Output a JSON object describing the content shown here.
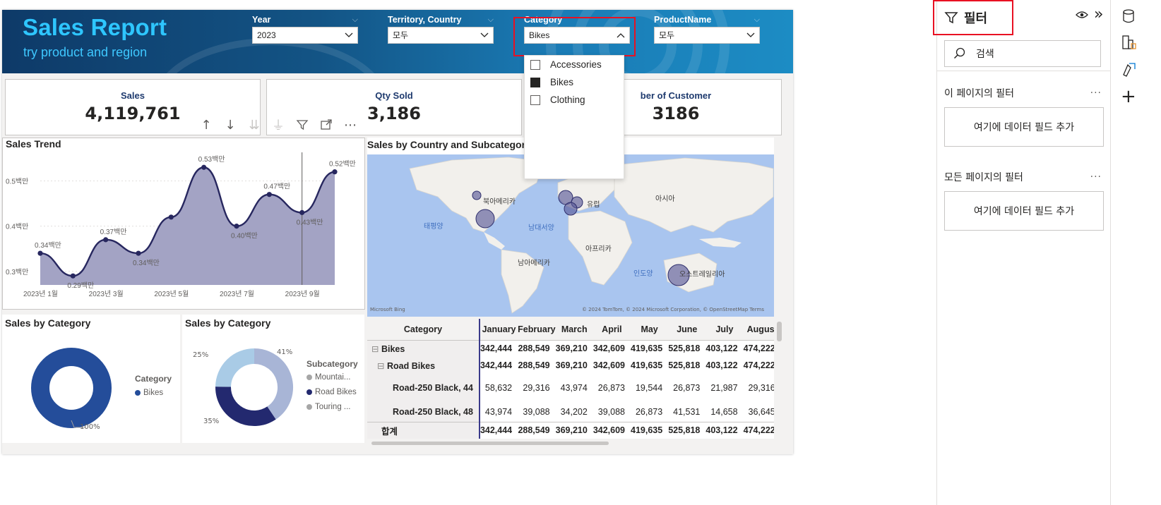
{
  "header": {
    "title": "Sales Report",
    "subtitle": "try product and region"
  },
  "slicers": [
    {
      "label": "Year",
      "value": "2023"
    },
    {
      "label": "Territory, Country",
      "value": "모두"
    },
    {
      "label": "Category",
      "value": "Bikes"
    },
    {
      "label": "ProductName",
      "value": "모두"
    }
  ],
  "category_dropdown": {
    "options": [
      {
        "label": "Accessories",
        "checked": false
      },
      {
        "label": "Bikes",
        "checked": true
      },
      {
        "label": "Clothing",
        "checked": false
      }
    ]
  },
  "cards": [
    {
      "title": "Sales",
      "value": "4,119,761"
    },
    {
      "title": "Qty Sold",
      "value": "3,186"
    },
    {
      "title": "ber of Customer",
      "value": "3186"
    }
  ],
  "sales_trend": {
    "title": "Sales Trend",
    "chart_data": {
      "type": "area",
      "yticks": [
        "0.3백만",
        "0.4백만",
        "0.5백만"
      ],
      "xticks": [
        "2023년 1월",
        "2023년 3월",
        "2023년 5월",
        "2023년 7월",
        "2023년 9월"
      ],
      "months": [
        "Jan",
        "Feb",
        "Mar",
        "Apr",
        "May",
        "Jun",
        "Jul",
        "Aug",
        "Sep",
        "Oct"
      ],
      "values": [
        0.34,
        0.29,
        0.37,
        0.34,
        0.42,
        0.53,
        0.4,
        0.47,
        0.43,
        0.52
      ],
      "labels": [
        "0.34백만",
        "0.29백만",
        "0.37백만",
        "0.34백만",
        "",
        "0.53백만",
        "0.40백만",
        "0.47백만",
        "0.43백만",
        "0.52백만"
      ],
      "ylim": [
        0.27,
        0.56
      ],
      "fill_color": "#a3a3c4",
      "line_color": "#27275f"
    }
  },
  "map": {
    "title": "Sales by Country and Subcategory",
    "labels": {
      "north_america": "북아메리카",
      "pacific": "태평양",
      "atlantic": "남대서양",
      "europe": "유럽",
      "asia": "아시아",
      "africa": "아프리카",
      "south_america": "남아메리카",
      "indian": "인도양",
      "australia": "오스트레일리아"
    },
    "attribution": "© 2024 TomTom, © 2024 Microsoft Corporation, © OpenStreetMap  Terms",
    "bing": "Microsoft Bing"
  },
  "donut1": {
    "title": "Sales by Category",
    "legend_title": "Category",
    "legend": [
      {
        "name": "Bikes",
        "color": "#244d9a"
      }
    ],
    "chart_data": {
      "type": "pie",
      "slices": [
        {
          "name": "Bikes",
          "value": 100
        }
      ],
      "labels": [
        "100%"
      ]
    }
  },
  "donut2": {
    "title": "Sales by Category",
    "legend_title": "Subcategory",
    "legend": [
      {
        "name": "Mountai...",
        "color": "#a6a6a6"
      },
      {
        "name": "Road Bikes",
        "color": "#23296f"
      },
      {
        "name": "Touring ...",
        "color": "#a6a6a6"
      }
    ],
    "chart_data": {
      "type": "pie",
      "slices": [
        {
          "name": "Mountain Bikes",
          "value": 41,
          "color": "#a8b5d6"
        },
        {
          "name": "Road Bikes",
          "value": 35,
          "color": "#23296f"
        },
        {
          "name": "Touring Bikes",
          "value": 25,
          "color": "#a9cbe6"
        }
      ],
      "labels": [
        "41%",
        "35%",
        "25%"
      ]
    }
  },
  "matrix": {
    "columns": [
      "Category",
      "January",
      "February",
      "March",
      "April",
      "May",
      "June",
      "July",
      "August"
    ],
    "rows": [
      {
        "label": "Bikes",
        "values": [
          "342,444",
          "288,549",
          "369,210",
          "342,609",
          "419,635",
          "525,818",
          "403,122",
          "474,222"
        ]
      },
      {
        "label": "Road Bikes",
        "values": [
          "342,444",
          "288,549",
          "369,210",
          "342,609",
          "419,635",
          "525,818",
          "403,122",
          "474,222"
        ]
      },
      {
        "label": "Road-250 Black, 44",
        "values": [
          "58,632",
          "29,316",
          "43,974",
          "26,873",
          "19,544",
          "26,873",
          "21,987",
          "29,316"
        ]
      },
      {
        "label": "Road-250 Black, 48",
        "values": [
          "43,974",
          "39,088",
          "34,202",
          "39,088",
          "26,873",
          "41,531",
          "14,658",
          "36,645"
        ]
      }
    ],
    "total": {
      "label": "합계",
      "values": [
        "342,444",
        "288,549",
        "369,210",
        "342,609",
        "419,635",
        "525,818",
        "403,122",
        "474,222"
      ]
    }
  },
  "filters_pane": {
    "title": "필터",
    "search_placeholder": "검색",
    "this_page": "이 페이지의 필터",
    "all_pages": "모든 페이지의 필터",
    "add_field": "여기에 데이터 필드 추가",
    "more": "..."
  }
}
